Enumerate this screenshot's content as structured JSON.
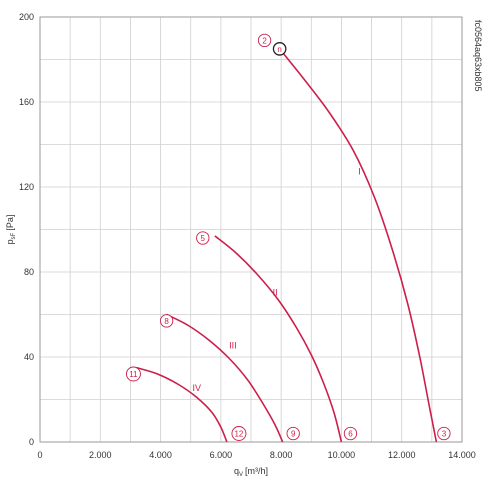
{
  "chart_data": {
    "type": "line",
    "xlabel": "q",
    "xlabel_sub": "V",
    "xlabel_unit": "[m³/h]",
    "ylabel": "p",
    "ylabel_sub": "sF",
    "ylabel_unit": "[Pa]",
    "xlim": [
      0,
      14000
    ],
    "ylim": [
      0,
      200
    ],
    "x_ticks": [
      0,
      2000,
      4000,
      6000,
      8000,
      10000,
      12000,
      14000
    ],
    "x_tick_labels": [
      "0",
      "2.000",
      "4.000",
      "6.000",
      "8.000",
      "10.000",
      "12.000",
      "14.000"
    ],
    "y_ticks": [
      0,
      40,
      80,
      120,
      160,
      200
    ],
    "y_tick_labels": [
      "0",
      "40",
      "80",
      "120",
      "160",
      "200"
    ],
    "grid": true,
    "vertical_id": "fc0564aq63xb805",
    "curve_color": "#cc1f4a",
    "series": [
      {
        "name": "I",
        "label_at": [
          10600,
          126
        ],
        "points": [
          [
            7950,
            185
          ],
          [
            8800,
            170
          ],
          [
            9600,
            155
          ],
          [
            10400,
            137
          ],
          [
            11100,
            115
          ],
          [
            11700,
            90
          ],
          [
            12200,
            65
          ],
          [
            12600,
            40
          ],
          [
            12900,
            18
          ],
          [
            13150,
            0
          ]
        ]
      },
      {
        "name": "II",
        "label_at": [
          7800,
          69
        ],
        "points": [
          [
            5800,
            97
          ],
          [
            6500,
            89
          ],
          [
            7200,
            79
          ],
          [
            7900,
            67
          ],
          [
            8500,
            54
          ],
          [
            9000,
            41
          ],
          [
            9400,
            28
          ],
          [
            9750,
            14
          ],
          [
            10000,
            0
          ]
        ]
      },
      {
        "name": "III",
        "label_at": [
          6400,
          44
        ],
        "points": [
          [
            4200,
            60
          ],
          [
            4900,
            55
          ],
          [
            5600,
            48
          ],
          [
            6300,
            39
          ],
          [
            6900,
            29
          ],
          [
            7400,
            18
          ],
          [
            7800,
            8
          ],
          [
            8050,
            0
          ]
        ]
      },
      {
        "name": "IV",
        "label_at": [
          5200,
          24
        ],
        "points": [
          [
            3200,
            35
          ],
          [
            3900,
            32
          ],
          [
            4600,
            27
          ],
          [
            5200,
            21
          ],
          [
            5700,
            14
          ],
          [
            6000,
            7
          ],
          [
            6200,
            0
          ]
        ]
      }
    ],
    "markers": [
      {
        "label": "2",
        "x": 7450,
        "y": 189,
        "style": "circle"
      },
      {
        "label": "n",
        "x": 7950,
        "y": 185,
        "style": "dark-circle"
      },
      {
        "label": "3",
        "x": 13400,
        "y": 4,
        "style": "circle"
      },
      {
        "label": "5",
        "x": 5400,
        "y": 96,
        "style": "circle"
      },
      {
        "label": "6",
        "x": 10300,
        "y": 4,
        "style": "circle"
      },
      {
        "label": "8",
        "x": 4200,
        "y": 57,
        "style": "circle"
      },
      {
        "label": "9",
        "x": 8400,
        "y": 4,
        "style": "circle"
      },
      {
        "label": "11",
        "x": 3100,
        "y": 32,
        "style": "circle"
      },
      {
        "label": "12",
        "x": 6600,
        "y": 4,
        "style": "circle"
      }
    ]
  }
}
